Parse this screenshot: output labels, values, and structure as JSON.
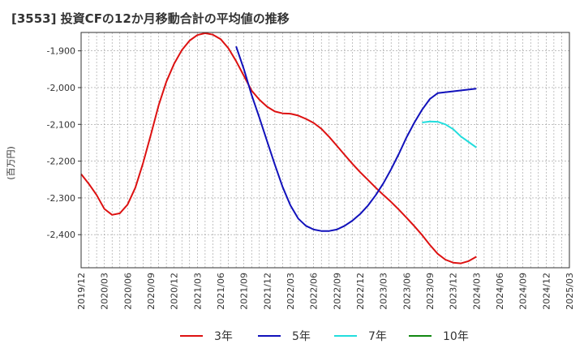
{
  "chart_data": {
    "type": "line",
    "title": "[3553]  投資CFの12か月移動合計の平均値の推移",
    "ylabel": "(百万円)",
    "xlabel": "",
    "ylim": [
      -2490,
      -1850
    ],
    "yticks": [
      -1900,
      -2000,
      -2100,
      -2200,
      -2300,
      -2400
    ],
    "ytick_labels": [
      "-1,900",
      "-2,000",
      "-2,100",
      "-2,200",
      "-2,300",
      "-2,400"
    ],
    "xlim": [
      "2019-12",
      "2025-03"
    ],
    "xticks": [
      "2019/12",
      "2020/03",
      "2020/06",
      "2020/09",
      "2020/12",
      "2021/03",
      "2021/06",
      "2021/09",
      "2021/12",
      "2022/03",
      "2022/06",
      "2022/09",
      "2022/12",
      "2023/03",
      "2023/06",
      "2023/09",
      "2023/12",
      "2024/03",
      "2024/06",
      "2024/09",
      "2024/12",
      "2025/03"
    ],
    "grid": true,
    "legend_position": "bottom",
    "series": [
      {
        "name": "3年",
        "color": "#dd1111",
        "points": [
          [
            "2019-12",
            -2235
          ],
          [
            "2020-01",
            -2262
          ],
          [
            "2020-02",
            -2292
          ],
          [
            "2020-03",
            -2330
          ],
          [
            "2020-04",
            -2346
          ],
          [
            "2020-05",
            -2342
          ],
          [
            "2020-06",
            -2318
          ],
          [
            "2020-07",
            -2272
          ],
          [
            "2020-08",
            -2205
          ],
          [
            "2020-09",
            -2128
          ],
          [
            "2020-10",
            -2048
          ],
          [
            "2020-11",
            -1984
          ],
          [
            "2020-12",
            -1935
          ],
          [
            "2021-01",
            -1898
          ],
          [
            "2021-02",
            -1872
          ],
          [
            "2021-03",
            -1857
          ],
          [
            "2021-04",
            -1852
          ],
          [
            "2021-05",
            -1856
          ],
          [
            "2021-06",
            -1868
          ],
          [
            "2021-07",
            -1893
          ],
          [
            "2021-08",
            -1928
          ],
          [
            "2021-09",
            -1968
          ],
          [
            "2021-10",
            -2008
          ],
          [
            "2021-11",
            -2033
          ],
          [
            "2021-12",
            -2052
          ],
          [
            "2022-01",
            -2065
          ],
          [
            "2022-02",
            -2070
          ],
          [
            "2022-03",
            -2071
          ],
          [
            "2022-04",
            -2076
          ],
          [
            "2022-05",
            -2085
          ],
          [
            "2022-06",
            -2096
          ],
          [
            "2022-07",
            -2112
          ],
          [
            "2022-08",
            -2134
          ],
          [
            "2022-09",
            -2158
          ],
          [
            "2022-10",
            -2183
          ],
          [
            "2022-11",
            -2207
          ],
          [
            "2022-12",
            -2230
          ],
          [
            "2022-12",
            -2230
          ],
          [
            "2023-01",
            -2251
          ],
          [
            "2023-02",
            -2272
          ],
          [
            "2023-03",
            -2292
          ],
          [
            "2023-04",
            -2311
          ],
          [
            "2023-05",
            -2332
          ],
          [
            "2023-06",
            -2354
          ],
          [
            "2023-07",
            -2377
          ],
          [
            "2023-08",
            -2401
          ],
          [
            "2023-09",
            -2428
          ],
          [
            "2023-10",
            -2452
          ],
          [
            "2023-11",
            -2468
          ],
          [
            "2023-12",
            -2476
          ],
          [
            "2024-01",
            -2478
          ],
          [
            "2024-02",
            -2472
          ],
          [
            "2024-03",
            -2460
          ]
        ]
      },
      {
        "name": "5年",
        "color": "#1111bb",
        "points": [
          [
            "2021-08",
            -1888
          ],
          [
            "2021-09",
            -1950
          ],
          [
            "2021-10",
            -2020
          ],
          [
            "2021-11",
            -2082
          ],
          [
            "2021-12",
            -2146
          ],
          [
            "2022-01",
            -2210
          ],
          [
            "2022-02",
            -2270
          ],
          [
            "2022-03",
            -2320
          ],
          [
            "2022-04",
            -2356
          ],
          [
            "2022-05",
            -2376
          ],
          [
            "2022-06",
            -2386
          ],
          [
            "2022-07",
            -2390
          ],
          [
            "2022-08",
            -2390
          ],
          [
            "2022-09",
            -2386
          ],
          [
            "2022-10",
            -2376
          ],
          [
            "2022-11",
            -2362
          ],
          [
            "2022-12",
            -2344
          ],
          [
            "2023-01",
            -2321
          ],
          [
            "2023-02",
            -2293
          ],
          [
            "2023-03",
            -2260
          ],
          [
            "2023-04",
            -2222
          ],
          [
            "2023-05",
            -2180
          ],
          [
            "2023-06",
            -2135
          ],
          [
            "2023-07",
            -2095
          ],
          [
            "2023-08",
            -2060
          ],
          [
            "2023-09",
            -2031
          ],
          [
            "2023-10",
            -2015
          ],
          [
            "2024-03",
            -2003
          ]
        ]
      },
      {
        "name": "7年",
        "color": "#22dddd",
        "points": [
          [
            "2023-08",
            -2095
          ],
          [
            "2023-09",
            -2092
          ],
          [
            "2023-10",
            -2093
          ],
          [
            "2023-11",
            -2100
          ],
          [
            "2023-12",
            -2113
          ],
          [
            "2024-01",
            -2133
          ],
          [
            "2024-02",
            -2148
          ],
          [
            "2024-03",
            -2163
          ]
        ]
      },
      {
        "name": "10年",
        "color": "#118811",
        "points": []
      }
    ]
  }
}
